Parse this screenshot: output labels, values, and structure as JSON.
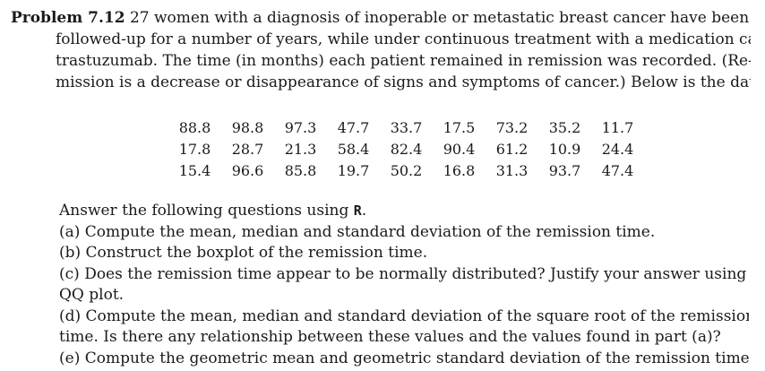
{
  "problem": {
    "label": "Problem 7.12",
    "lines": [
      " 27 women with a diagnosis of inoperable or metastatic breast cancer have been",
      "followed-up for a number of years, while under continuous treatment with a medication called",
      "trastuzumab. The time (in months) each patient remained in remission was recorded. (Re-",
      "mission is a decrease or disappearance of signs and symptoms of cancer.) Below is the data:"
    ]
  },
  "data_rows": [
    [
      "88.8",
      "98.8",
      "97.3",
      "47.7",
      "33.7",
      "17.5",
      "73.2",
      "35.2",
      "11.7"
    ],
    [
      "17.8",
      "28.7",
      "21.3",
      "58.4",
      "82.4",
      "90.4",
      "61.2",
      "10.9",
      "24.4"
    ],
    [
      "15.4",
      "96.6",
      "85.8",
      "19.7",
      "50.2",
      "16.8",
      "31.3",
      "93.7",
      "47.4"
    ]
  ],
  "questions": {
    "intro_text": "Answer the following questions using ",
    "intro_code": "R",
    "intro_end": ".",
    "lines": [
      "(a) Compute the mean, median and standard deviation of the remission time.",
      "(b) Construct the boxplot of the remission time.",
      "(c) Does the remission time appear to be normally distributed? Justify your answer using a",
      "QQ plot.",
      "(d) Compute the mean, median and standard deviation of the square root of the remission",
      "time. Is there any relationship between these values and the values found in part (a)?",
      "(e) Compute the geometric mean and geometric standard deviation of the remission time."
    ]
  }
}
